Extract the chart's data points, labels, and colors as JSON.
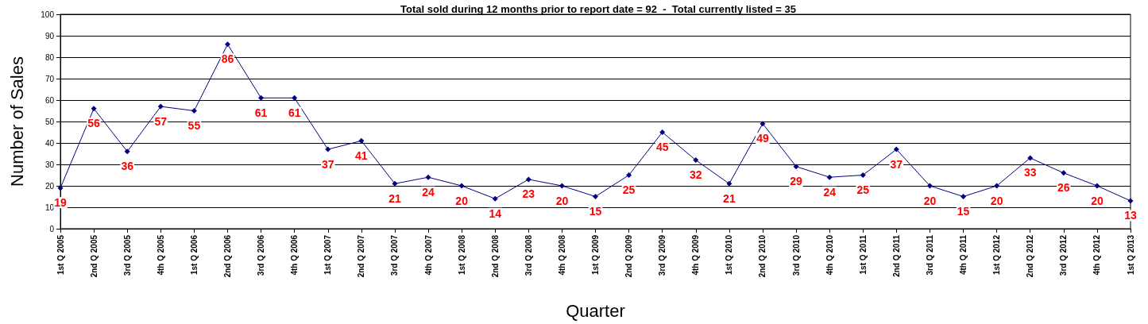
{
  "chart_data": {
    "type": "line",
    "title": "Total sold during 12 months prior to report date = 92  -  Total currently listed = 35",
    "xlabel": "Quarter",
    "ylabel": "Number of Sales",
    "categories": [
      "1st Q 2005",
      "2nd Q 2005",
      "3rd Q 2005",
      "4th Q 2005",
      "1st Q 2006",
      "2nd Q 2006",
      "3rd Q 2006",
      "4th Q 2006",
      "1st Q 2007",
      "2nd Q 2007",
      "3rd Q 2007",
      "4th Q 2007",
      "1st Q 2008",
      "2nd Q 2008",
      "3rd Q 2008",
      "4th Q 2008",
      "1st Q 2009",
      "2nd Q 2009",
      "3rd Q 2009",
      "4th Q 2009",
      "1st Q 2010",
      "2nd Q 2010",
      "3rd Q 2010",
      "4th Q 2010",
      "1st Q 2011",
      "2nd Q 2011",
      "3rd Q 2011",
      "4th Q 2011",
      "1st Q 2012",
      "2nd Q 2012",
      "3rd Q 2012",
      "4th Q 2012",
      "1st Q 2013"
    ],
    "series": [
      {
        "color": "#000080",
        "values": [
          19,
          56,
          36,
          57,
          55,
          86,
          61,
          61,
          37,
          41,
          21,
          24,
          20,
          14,
          23,
          20,
          15,
          25,
          45,
          32,
          21,
          49,
          29,
          24,
          25,
          37,
          20,
          15,
          20,
          33,
          26,
          20,
          13
        ]
      }
    ],
    "ylim": [
      0,
      100
    ],
    "yticks": [
      0,
      10,
      20,
      30,
      40,
      50,
      60,
      70,
      80,
      90,
      100
    ],
    "grid": "y",
    "marker": "diamond",
    "line_style": "solid",
    "data_labels": true
  }
}
